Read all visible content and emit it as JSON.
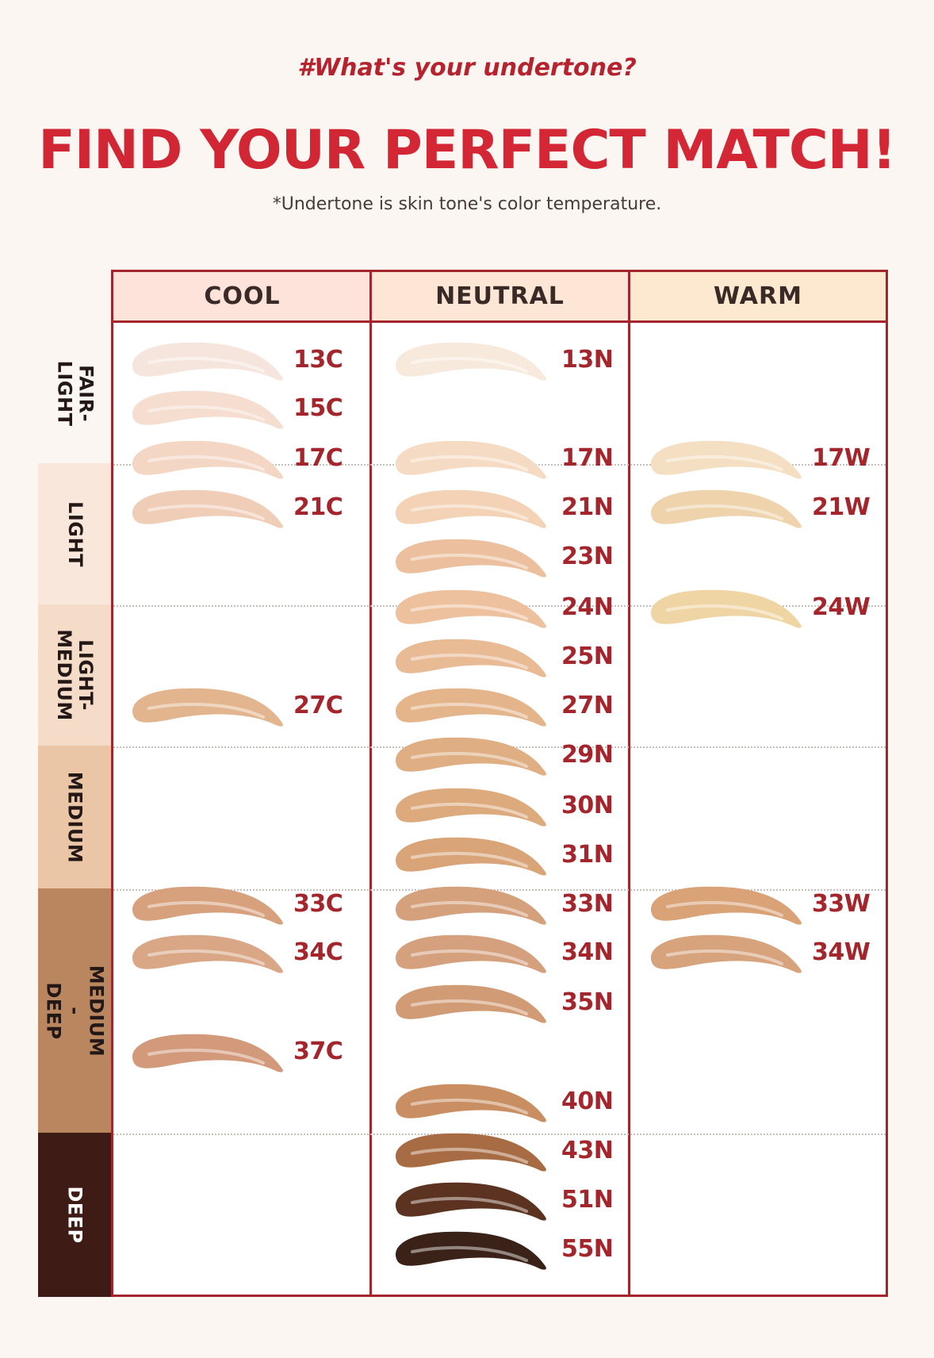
{
  "header": {
    "tagline": "#What's your undertone?",
    "headline_part1": "FIND YOUR ",
    "headline_part2": "PERFECT MATCH!",
    "note": "*Undertone is skin tone's color temperature."
  },
  "columns": [
    {
      "id": "cool",
      "label": "COOL",
      "header_color": "#fde3d9"
    },
    {
      "id": "neutral",
      "label": "NEUTRAL",
      "header_color": "#fde6d5"
    },
    {
      "id": "warm",
      "label": "WARM",
      "header_color": "#fde9cf"
    }
  ],
  "tone_groups": [
    {
      "label": "FAIR-\nLIGHT",
      "color": "#fbf6f2",
      "text_color": "#231816"
    },
    {
      "label": "LIGHT",
      "color": "#f9e7dc",
      "text_color": "#231816"
    },
    {
      "label": "LIGHT-\nMEDIUM",
      "color": "#f4dcc9",
      "text_color": "#231816"
    },
    {
      "label": "MEDIUM",
      "color": "#eac6a6",
      "text_color": "#231816"
    },
    {
      "label": "MEDIUM -\nDEEP",
      "color": "#b98660",
      "text_color": "#231816"
    },
    {
      "label": "DEEP",
      "color": "#3f1b15",
      "text_color": "#ffffff"
    }
  ],
  "shades": {
    "cool": [
      {
        "name": "13C",
        "color": "#f6e5dc"
      },
      {
        "name": "15C",
        "color": "#f5ddcf"
      },
      {
        "name": "17C",
        "color": "#f4d6c5"
      },
      {
        "name": "21C",
        "color": "#f0cdb7"
      },
      {
        "name": "27C",
        "color": "#e2b58e"
      },
      {
        "name": "33C",
        "color": "#d7a17e"
      },
      {
        "name": "34C",
        "color": "#d9a686"
      },
      {
        "name": "37C",
        "color": "#d29a7a"
      }
    ],
    "neutral": [
      {
        "name": "13N",
        "color": "#f7e9dc"
      },
      {
        "name": "17N",
        "color": "#f6dbc4"
      },
      {
        "name": "21N",
        "color": "#f3d2b5"
      },
      {
        "name": "23N",
        "color": "#ecc09e"
      },
      {
        "name": "24N",
        "color": "#edc19e"
      },
      {
        "name": "25N",
        "color": "#e9bb95"
      },
      {
        "name": "27N",
        "color": "#e4b48a"
      },
      {
        "name": "29N",
        "color": "#dfae83"
      },
      {
        "name": "30N",
        "color": "#dcaa7d"
      },
      {
        "name": "31N",
        "color": "#d9a478"
      },
      {
        "name": "33N",
        "color": "#d5a07c"
      },
      {
        "name": "34N",
        "color": "#d4a07e"
      },
      {
        "name": "35N",
        "color": "#d19b75"
      },
      {
        "name": "40N",
        "color": "#c98e62"
      },
      {
        "name": "43N",
        "color": "#a86c44"
      },
      {
        "name": "51N",
        "color": "#5c3320"
      },
      {
        "name": "55N",
        "color": "#3b2219"
      }
    ],
    "warm": [
      {
        "name": "17W",
        "color": "#f5dfc3"
      },
      {
        "name": "21W",
        "color": "#efd3ad"
      },
      {
        "name": "24W",
        "color": "#f0d5a4"
      },
      {
        "name": "33W",
        "color": "#d9a277"
      },
      {
        "name": "34W",
        "color": "#d7a37c"
      }
    ]
  }
}
